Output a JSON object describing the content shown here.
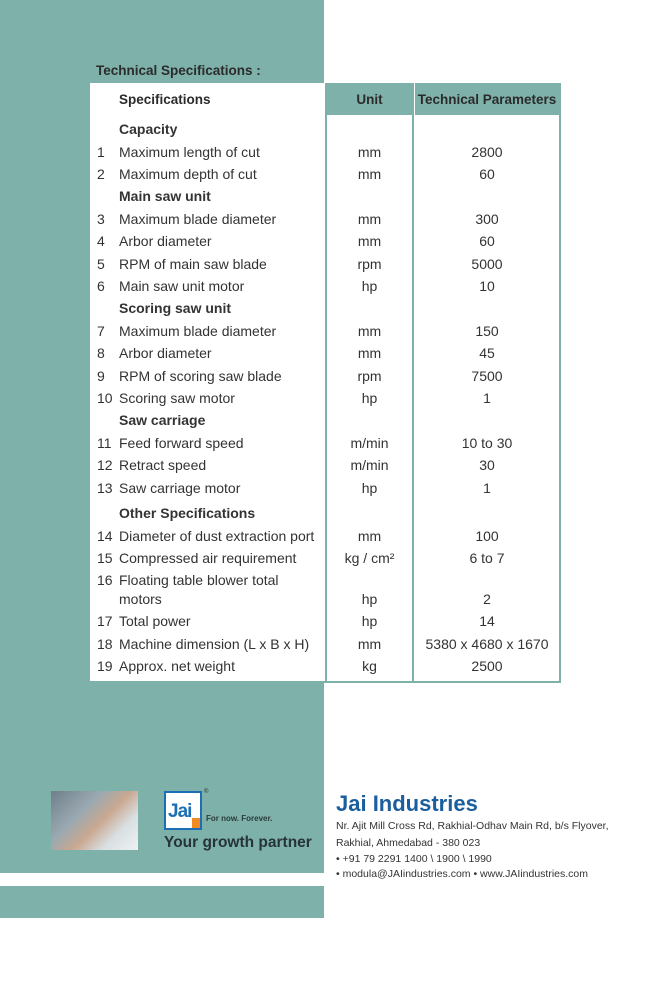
{
  "colors": {
    "accent": "#7eb1aa",
    "brand": "#1b5e9e"
  },
  "title": "Technical Specifications :",
  "headers": {
    "spec": "Specifications",
    "unit": "Unit",
    "params": "Technical Parameters"
  },
  "rows": [
    {
      "type": "section",
      "spec": "Capacity"
    },
    {
      "no": "1",
      "spec": "Maximum length of cut",
      "unit": "mm",
      "param": "2800"
    },
    {
      "no": "2",
      "spec": "Maximum depth of cut",
      "unit": "mm",
      "param": "60"
    },
    {
      "type": "section",
      "spec": "Main saw unit"
    },
    {
      "no": "3",
      "spec": "Maximum blade diameter",
      "unit": "mm",
      "param": "300"
    },
    {
      "no": "4",
      "spec": "Arbor diameter",
      "unit": "mm",
      "param": "60"
    },
    {
      "no": "5",
      "spec": "RPM of main saw blade",
      "unit": "rpm",
      "param": "5000"
    },
    {
      "no": "6",
      "spec": "Main saw unit motor",
      "unit": "hp",
      "param": "10"
    },
    {
      "type": "section",
      "spec": "Scoring saw unit"
    },
    {
      "no": "7",
      "spec": "Maximum blade diameter",
      "unit": "mm",
      "param": "150"
    },
    {
      "no": "8",
      "spec": "Arbor diameter",
      "unit": "mm",
      "param": "45"
    },
    {
      "no": "9",
      "spec": "RPM of scoring saw blade",
      "unit": "rpm",
      "param": "7500"
    },
    {
      "no": "10",
      "spec": "Scoring saw motor",
      "unit": "hp",
      "param": "1"
    },
    {
      "type": "section",
      "spec": "Saw carriage"
    },
    {
      "no": "11",
      "spec": "Feed forward speed",
      "unit": "m/min",
      "param": "10 to 30"
    },
    {
      "no": "12",
      "spec": "Retract speed",
      "unit": "m/min",
      "param": "30"
    },
    {
      "no": "13",
      "spec": "Saw carriage motor",
      "unit": "hp",
      "param": "1"
    },
    {
      "type": "section",
      "spec": "Other Specifications"
    },
    {
      "no": "14",
      "spec": "Diameter of dust extraction port",
      "unit": "mm",
      "param": "100"
    },
    {
      "no": "15",
      "spec": "Compressed air requirement",
      "unit": "kg / cm²",
      "param": "6 to 7"
    },
    {
      "no": "16",
      "spec": "Floating table blower total",
      "spec2": "motors",
      "unit": "hp",
      "param": "2"
    },
    {
      "no": "17",
      "spec": "Total power",
      "unit": "hp",
      "param": "14"
    },
    {
      "no": "18",
      "spec": "Machine dimension (L x B x H)",
      "unit": "mm",
      "param": "5380 x 4680 x 1670"
    },
    {
      "no": "19",
      "spec": "Approx. net weight",
      "unit": "kg",
      "param": "2500"
    }
  ],
  "footer": {
    "logo_text": "Jai",
    "registered": "®",
    "tagline": "For now. Forever.",
    "growth": "Your growth partner",
    "company": "Jai Industries",
    "address1": "Nr. Ajit Mill Cross Rd, Rakhial-Odhav Main Rd, b/s Flyover,",
    "address2": "Rakhial, Ahmedabad - 380 023",
    "phone": "• +91 79 2291 1400 \\ 1900 \\ 1990",
    "contact": "• modula@JAIindustries.com • www.JAIindustries.com"
  }
}
